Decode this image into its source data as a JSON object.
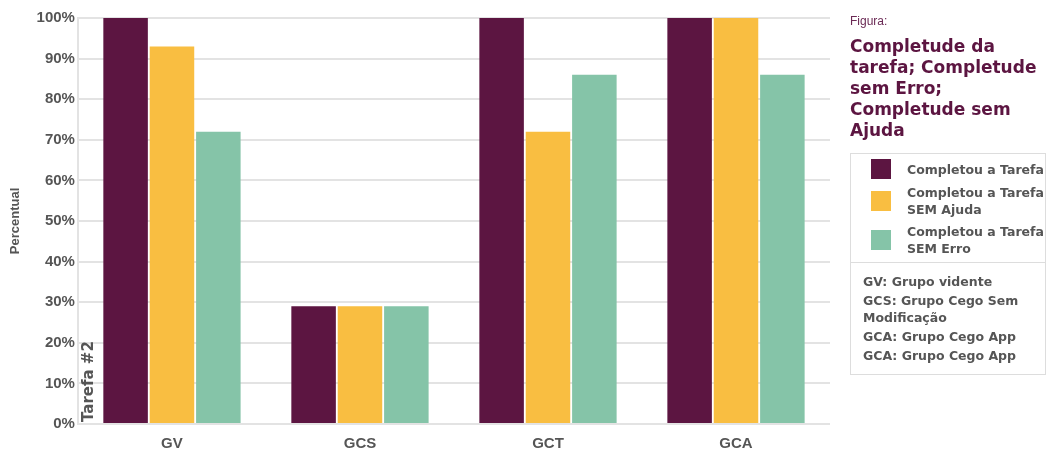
{
  "chart_data": {
    "type": "bar",
    "subtitle": "Figura:",
    "title": "Completude da tarefa; Completude sem Erro; Completude sem Ajuda",
    "ylabel": "Percentual",
    "categories": [
      "GV",
      "GCS",
      "GCT",
      "GCA"
    ],
    "series": [
      {
        "name": "Completou a Tarefa",
        "color": "#5c1541",
        "values": [
          100,
          29,
          100,
          100
        ]
      },
      {
        "name": "Completou a Tarefa SEM Ajuda",
        "color": "#f9be41",
        "values": [
          93,
          29,
          72,
          100
        ]
      },
      {
        "name": "Completou a Tarefa SEM Erro",
        "color": "#85c4a8",
        "values": [
          72,
          29,
          86,
          86
        ]
      }
    ],
    "ylim": [
      0,
      100
    ],
    "yticks": [
      {
        "value": 0,
        "label": "0%"
      },
      {
        "value": 10,
        "label": "10%"
      },
      {
        "value": 20,
        "label": "20%"
      },
      {
        "value": 30,
        "label": "30%"
      },
      {
        "value": 40,
        "label": "40%"
      },
      {
        "value": 50,
        "label": "50%"
      },
      {
        "value": 60,
        "label": "60%"
      },
      {
        "value": 70,
        "label": "70%"
      },
      {
        "value": 80,
        "label": "80%"
      },
      {
        "value": 90,
        "label": "90%"
      },
      {
        "value": 100,
        "label": "100%"
      }
    ],
    "grid": "y",
    "legend": "right",
    "annotations": [
      "Tarefa #2",
      "GV: Grupo vidente",
      "GCS: Grupo Cego Sem Modificação",
      "GCA: Grupo Cego App",
      "GCA: Grupo Cego App"
    ]
  }
}
